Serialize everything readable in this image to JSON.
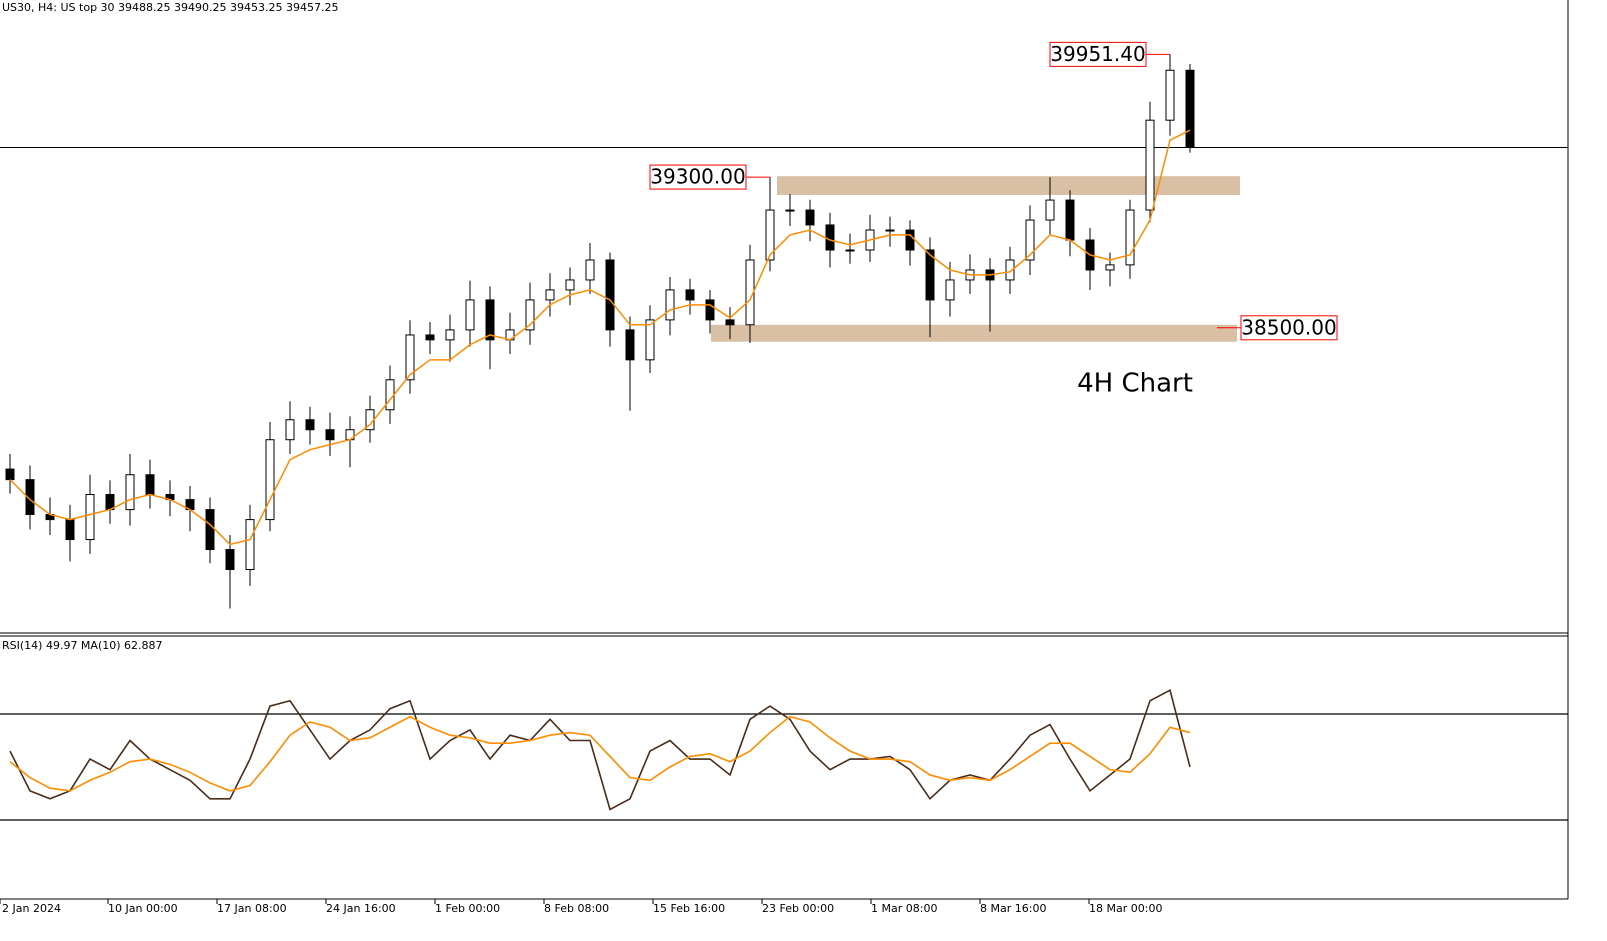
{
  "chart_data": [
    {
      "type": "candlestick",
      "title": "US30, H4:  US top 30  39488.25 39490.25 39453.25 39457.25",
      "color": "#000000",
      "open": [
        37750,
        37694,
        37509,
        37482,
        37376,
        37615,
        37535,
        37720,
        37615,
        37588,
        37535,
        37323,
        37217,
        37482,
        37906,
        38012,
        37959,
        37906,
        37959,
        38065,
        38224,
        38462,
        38436,
        38489,
        38648,
        38436,
        38489,
        38648,
        38701,
        38754,
        38860,
        38489,
        38330,
        38542,
        38701,
        38648,
        38542,
        38516,
        38860,
        39125,
        39125,
        39046,
        38913,
        38913,
        39019,
        39019,
        38913,
        38648,
        38754,
        38807,
        38754,
        38860,
        39072,
        39178,
        38966,
        38807,
        38834,
        39125,
        39602,
        39867
      ],
      "high": [
        37830,
        37770,
        37600,
        37560,
        37720,
        37690,
        37830,
        37800,
        37690,
        37660,
        37600,
        37400,
        37560,
        38000,
        38110,
        38080,
        38050,
        38030,
        38140,
        38300,
        38540,
        38530,
        38570,
        38750,
        38720,
        38580,
        38740,
        38790,
        38820,
        38950,
        38900,
        38560,
        38620,
        38770,
        38760,
        38700,
        38610,
        38940,
        39300,
        39210,
        39180,
        39110,
        39000,
        39100,
        39090,
        39070,
        38980,
        38850,
        38890,
        38870,
        38930,
        39150,
        39300,
        39230,
        39030,
        38900,
        39180,
        39700,
        39951.4,
        39900
      ],
      "low": [
        37620,
        37430,
        37400,
        37260,
        37300,
        37460,
        37450,
        37540,
        37500,
        37420,
        37250,
        37010,
        37130,
        37420,
        37830,
        37880,
        37820,
        37760,
        37890,
        37990,
        38150,
        38360,
        38320,
        38400,
        38280,
        38360,
        38410,
        38560,
        38620,
        38680,
        38400,
        38060,
        38260,
        38460,
        38570,
        38470,
        38440,
        38420,
        38800,
        39040,
        38960,
        38820,
        38840,
        38850,
        38930,
        38830,
        38450,
        38560,
        38680,
        38480,
        38680,
        38780,
        38990,
        38880,
        38700,
        38720,
        38760,
        39060,
        39520,
        39430
      ],
      "close": [
        37694,
        37509,
        37482,
        37376,
        37615,
        37535,
        37720,
        37615,
        37588,
        37535,
        37323,
        37217,
        37482,
        37906,
        38012,
        37959,
        37906,
        37959,
        38065,
        38224,
        38462,
        38436,
        38489,
        38648,
        38436,
        38489,
        38648,
        38701,
        38754,
        38860,
        38489,
        38330,
        38542,
        38701,
        38648,
        38542,
        38516,
        38860,
        39125,
        39125,
        39046,
        38913,
        38913,
        39019,
        39019,
        38913,
        38648,
        38754,
        38807,
        38754,
        38860,
        39072,
        39178,
        38966,
        38807,
        38834,
        39125,
        39602,
        39867,
        39457
      ],
      "ma": {
        "color": "#ff8c00",
        "values": [
          37694,
          37588,
          37509,
          37482,
          37509,
          37535,
          37588,
          37615,
          37588,
          37535,
          37456,
          37350,
          37376,
          37588,
          37800,
          37853,
          37880,
          37906,
          37986,
          38118,
          38251,
          38330,
          38330,
          38410,
          38462,
          38436,
          38516,
          38622,
          38675,
          38701,
          38648,
          38516,
          38516,
          38595,
          38622,
          38622,
          38553,
          38648,
          38887,
          38993,
          39019,
          38966,
          38940,
          38966,
          38993,
          38993,
          38887,
          38807,
          38781,
          38781,
          38797,
          38887,
          38993,
          38966,
          38887,
          38860,
          38887,
          39072,
          39496,
          39549
        ]
      },
      "ylim": [
        36880,
        40240
      ],
      "xlim": [
        -0.5,
        77.9
      ],
      "xticks": [
        {
          "value": -0.5,
          "label": "2 Jan 2024"
        },
        {
          "value": 4.9,
          "label": "10 Jan 00:00"
        },
        {
          "value": 10.35,
          "label": "17 Jan 08:00"
        },
        {
          "value": 15.8,
          "label": "24 Jan 16:00"
        },
        {
          "value": 21.25,
          "label": "1 Feb 00:00"
        },
        {
          "value": 26.7,
          "label": "8 Feb 08:00"
        },
        {
          "value": 32.15,
          "label": "15 Feb 16:00"
        },
        {
          "value": 37.6,
          "label": "23 Feb 00:00"
        },
        {
          "value": 43.05,
          "label": "1 Mar 08:00"
        },
        {
          "value": 48.5,
          "label": "8 Mar 16:00"
        },
        {
          "value": 53.95,
          "label": "18 Mar 00:00"
        }
      ],
      "price_line": 39457,
      "zones": [
        {
          "from": 39205,
          "to": 39305,
          "start": 38.35,
          "end": 61.5,
          "color": "#d9c0a5"
        },
        {
          "from": 38426,
          "to": 38516,
          "start": 35.05,
          "end": 61.35,
          "color": "#d9c0a5"
        }
      ],
      "price_labels": [
        {
          "value": 39951.4,
          "label": "39951.40"
        },
        {
          "value": 39300,
          "label": "39300.00"
        },
        {
          "value": 38500,
          "label": "38500.00"
        }
      ],
      "label_color": "#ff0000",
      "annotation": "4H Chart"
    },
    {
      "type": "line",
      "title": "RSI(14) 49.97 MA(10) 62.887",
      "series": [
        {
          "color": "#4a2c1a",
          "values": [
            56,
            41,
            38,
            41,
            53,
            49,
            60,
            53,
            49,
            45,
            38,
            38,
            53,
            73,
            75,
            64,
            53,
            60,
            64,
            72,
            75,
            53,
            60,
            64,
            53,
            62,
            60,
            68,
            60,
            60,
            34,
            38,
            56,
            60,
            53,
            53,
            47,
            68,
            73,
            68,
            56,
            49,
            53,
            53,
            54,
            49,
            38,
            45,
            47,
            45,
            53,
            62,
            66,
            53,
            41,
            47,
            53,
            75,
            79,
            50
          ]
        },
        {
          "color": "#ff8c00",
          "values": [
            52,
            46,
            42,
            41,
            45,
            48,
            52,
            53,
            51,
            48,
            44,
            41,
            43,
            52,
            62,
            67,
            65,
            60,
            61,
            65,
            69,
            65,
            62,
            61,
            59,
            59,
            60,
            62,
            63,
            62,
            54,
            46,
            45,
            50,
            54,
            55,
            52,
            56,
            63,
            69,
            67,
            61,
            56,
            53,
            53,
            52,
            47,
            45,
            46,
            45,
            49,
            54,
            59,
            59,
            54,
            49,
            48,
            55,
            65,
            63
          ]
        }
      ],
      "ylim": [
        0,
        100
      ],
      "xlim": [
        -0.5,
        77.9
      ],
      "levels": [
        70,
        30
      ]
    }
  ]
}
